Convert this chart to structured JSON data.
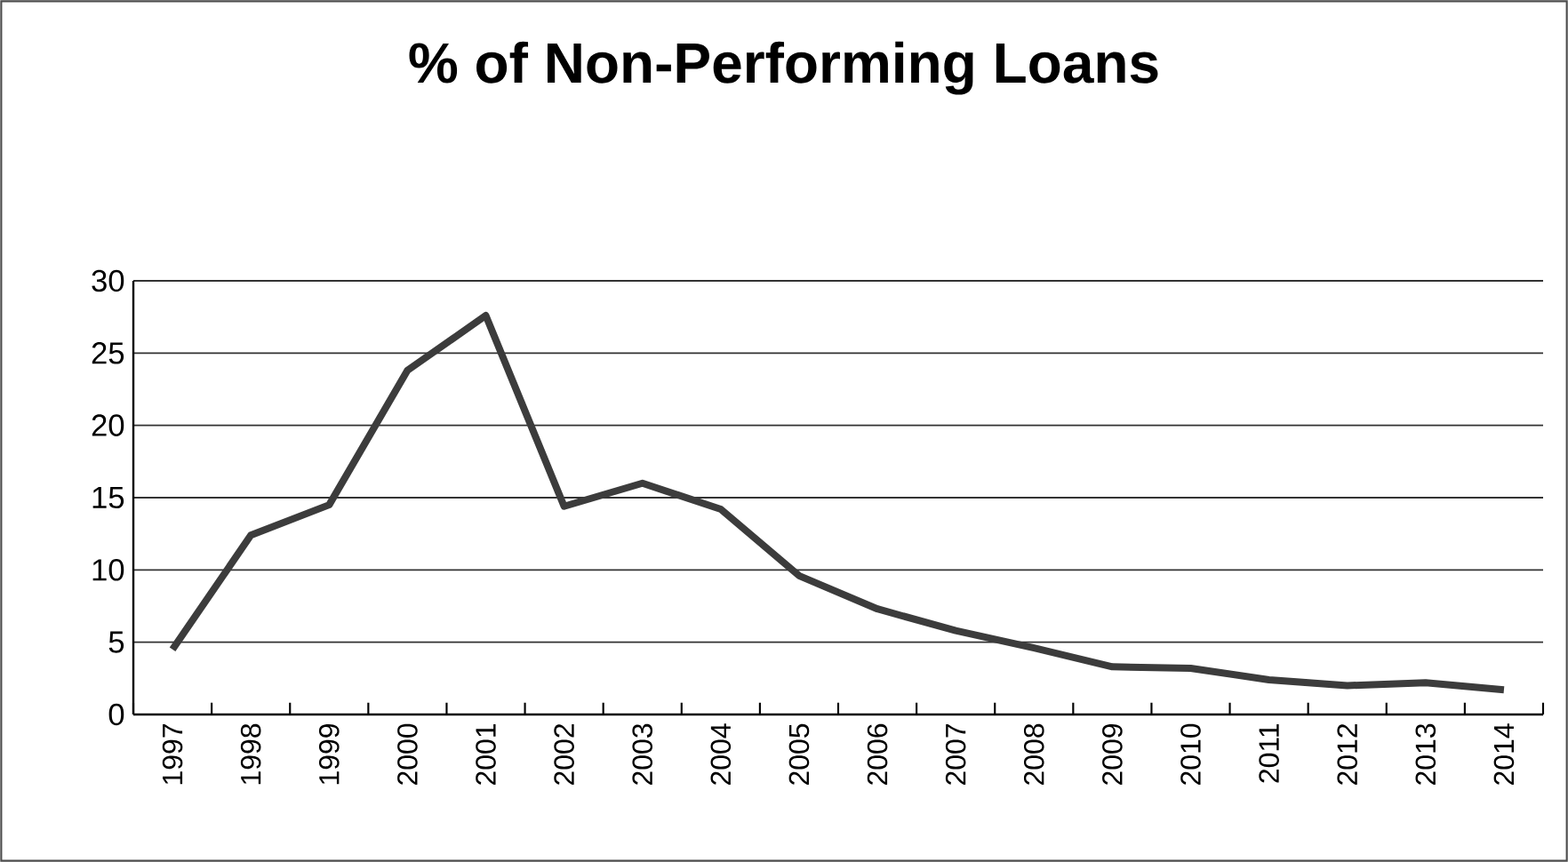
{
  "chart_data": {
    "type": "line",
    "title": "% of Non-Performing Loans",
    "categories": [
      "1997",
      "1998",
      "1999",
      "2000",
      "2001",
      "2002",
      "2003",
      "2004",
      "2005",
      "2006",
      "2007",
      "2008",
      "2009",
      "2010",
      "2011",
      "2012",
      "2013",
      "2014"
    ],
    "values": [
      4.5,
      12.4,
      14.5,
      23.8,
      27.6,
      14.4,
      16.0,
      14.2,
      9.6,
      7.3,
      5.8,
      4.6,
      3.3,
      3.2,
      2.4,
      2.0,
      2.2,
      1.7
    ],
    "color": "#3c3c3c",
    "ylim": [
      0,
      30
    ],
    "yticks": [
      0,
      5,
      10,
      15,
      20,
      25,
      30
    ],
    "grid": "y",
    "marker": "none",
    "line_style": "solid"
  }
}
